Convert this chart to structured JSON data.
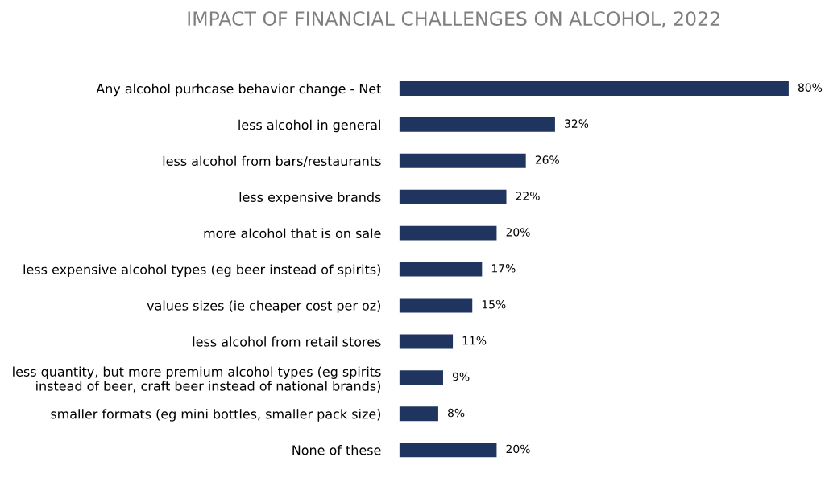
{
  "chart_data": {
    "type": "bar",
    "orientation": "horizontal",
    "title": "IMPACT OF FINANCIAL CHALLENGES ON ALCOHOL, 2022",
    "categories": [
      "Any alcohol purhcase behavior change - Net",
      "less alcohol in general",
      "less alcohol from bars/restaurants",
      "less expensive brands",
      "more alcohol that is on sale",
      "less expensive alcohol types (eg beer instead of spirits)",
      "values sizes (ie cheaper cost per oz)",
      "less alcohol from retail stores",
      "less quantity, but more premium alcohol types (eg spirits\ninstead of beer, craft beer instead of national brands)",
      "smaller formats (eg mini bottles, smaller pack size)",
      "None of these"
    ],
    "values": [
      80,
      32,
      26,
      22,
      20,
      17,
      15,
      11,
      9,
      8,
      20
    ],
    "value_labels": [
      "80%",
      "32%",
      "26%",
      "22%",
      "20%",
      "17%",
      "15%",
      "11%",
      "9%",
      "8%",
      "20%"
    ],
    "color": "#1f3560",
    "grid": false,
    "legend": false
  }
}
